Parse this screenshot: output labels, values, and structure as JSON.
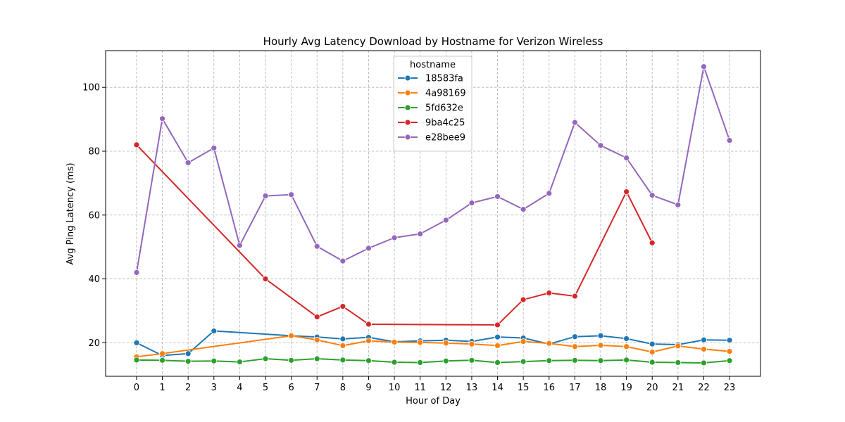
{
  "chart_data": {
    "type": "line",
    "title": "Hourly Avg Latency Download by Hostname for Verizon Wireless",
    "xlabel": "Hour of Day",
    "ylabel": "Avg Ping Latency (ms)",
    "x_ticks": [
      "0",
      "1",
      "2",
      "3",
      "4",
      "5",
      "6",
      "7",
      "8",
      "9",
      "10",
      "11",
      "12",
      "13",
      "14",
      "15",
      "16",
      "17",
      "18",
      "19",
      "20",
      "21",
      "22",
      "23"
    ],
    "y_ticks": [
      "20",
      "40",
      "60",
      "80",
      "100"
    ],
    "xlim": [
      -1.2,
      24.2
    ],
    "ylim": [
      9.5,
      111.5
    ],
    "grid": true,
    "legend": {
      "title": "hostname",
      "placement": "upper-center"
    },
    "series": [
      {
        "name": "18583fa",
        "color": "#1f77b4",
        "points": [
          [
            0,
            20.0
          ],
          [
            1,
            16.0
          ],
          [
            2,
            16.6
          ],
          [
            3,
            23.7
          ],
          [
            6,
            22.2
          ],
          [
            7,
            21.8
          ],
          [
            8,
            21.2
          ],
          [
            9,
            21.7
          ],
          [
            10,
            20.3
          ],
          [
            11,
            20.6
          ],
          [
            12,
            20.8
          ],
          [
            13,
            20.4
          ],
          [
            14,
            21.8
          ],
          [
            15,
            21.5
          ],
          [
            16,
            19.6
          ],
          [
            17,
            21.9
          ],
          [
            18,
            22.2
          ],
          [
            19,
            21.3
          ],
          [
            20,
            19.6
          ],
          [
            21,
            19.4
          ],
          [
            22,
            20.9
          ],
          [
            23,
            20.8
          ]
        ]
      },
      {
        "name": "4a98169",
        "color": "#ff7f0e",
        "points": [
          [
            0,
            15.6
          ],
          [
            1,
            16.6
          ],
          [
            6,
            22.2
          ],
          [
            7,
            20.9
          ],
          [
            8,
            19.1
          ],
          [
            9,
            20.6
          ],
          [
            10,
            20.2
          ],
          [
            11,
            20.1
          ],
          [
            12,
            19.9
          ],
          [
            13,
            19.6
          ],
          [
            14,
            19.1
          ],
          [
            15,
            20.4
          ],
          [
            16,
            19.8
          ],
          [
            17,
            18.8
          ],
          [
            18,
            19.2
          ],
          [
            19,
            18.8
          ],
          [
            20,
            17.1
          ],
          [
            21,
            19.0
          ],
          [
            22,
            18.0
          ],
          [
            23,
            17.3
          ]
        ]
      },
      {
        "name": "5fd632e",
        "color": "#2ca02c",
        "points": [
          [
            0,
            14.6
          ],
          [
            1,
            14.5
          ],
          [
            2,
            14.2
          ],
          [
            3,
            14.3
          ],
          [
            4,
            14.0
          ],
          [
            5,
            15.0
          ],
          [
            6,
            14.5
          ],
          [
            7,
            15.0
          ],
          [
            8,
            14.6
          ],
          [
            9,
            14.4
          ],
          [
            10,
            13.9
          ],
          [
            11,
            13.8
          ],
          [
            12,
            14.3
          ],
          [
            13,
            14.5
          ],
          [
            14,
            13.8
          ],
          [
            15,
            14.1
          ],
          [
            16,
            14.4
          ],
          [
            17,
            14.5
          ],
          [
            18,
            14.4
          ],
          [
            19,
            14.6
          ],
          [
            20,
            13.9
          ],
          [
            21,
            13.8
          ],
          [
            22,
            13.7
          ],
          [
            23,
            14.4
          ]
        ]
      },
      {
        "name": "9ba4c25",
        "color": "#d62728",
        "points": [
          [
            0,
            82.0
          ],
          [
            5,
            40.0
          ],
          [
            7,
            28.1
          ],
          [
            8,
            31.4
          ],
          [
            9,
            25.8
          ],
          [
            14,
            25.6
          ],
          [
            15,
            33.5
          ],
          [
            16,
            35.6
          ],
          [
            17,
            34.6
          ],
          [
            19,
            67.3
          ],
          [
            20,
            51.3
          ]
        ]
      },
      {
        "name": "e28bee9",
        "color": "#9467bd",
        "points": [
          [
            0,
            42.0
          ],
          [
            1,
            90.2
          ],
          [
            2,
            76.4
          ],
          [
            3,
            81.0
          ],
          [
            4,
            50.5
          ],
          [
            5,
            66.0
          ],
          [
            6,
            66.4
          ],
          [
            7,
            50.2
          ],
          [
            8,
            45.6
          ],
          [
            9,
            49.6
          ],
          [
            10,
            52.9
          ],
          [
            11,
            54.1
          ],
          [
            12,
            58.4
          ],
          [
            13,
            63.8
          ],
          [
            14,
            65.8
          ],
          [
            15,
            61.8
          ],
          [
            16,
            66.8
          ],
          [
            17,
            89.0
          ],
          [
            18,
            81.8
          ],
          [
            19,
            77.9
          ],
          [
            20,
            66.2
          ],
          [
            21,
            63.2
          ],
          [
            22,
            106.5
          ],
          [
            23,
            83.4
          ]
        ]
      }
    ]
  }
}
